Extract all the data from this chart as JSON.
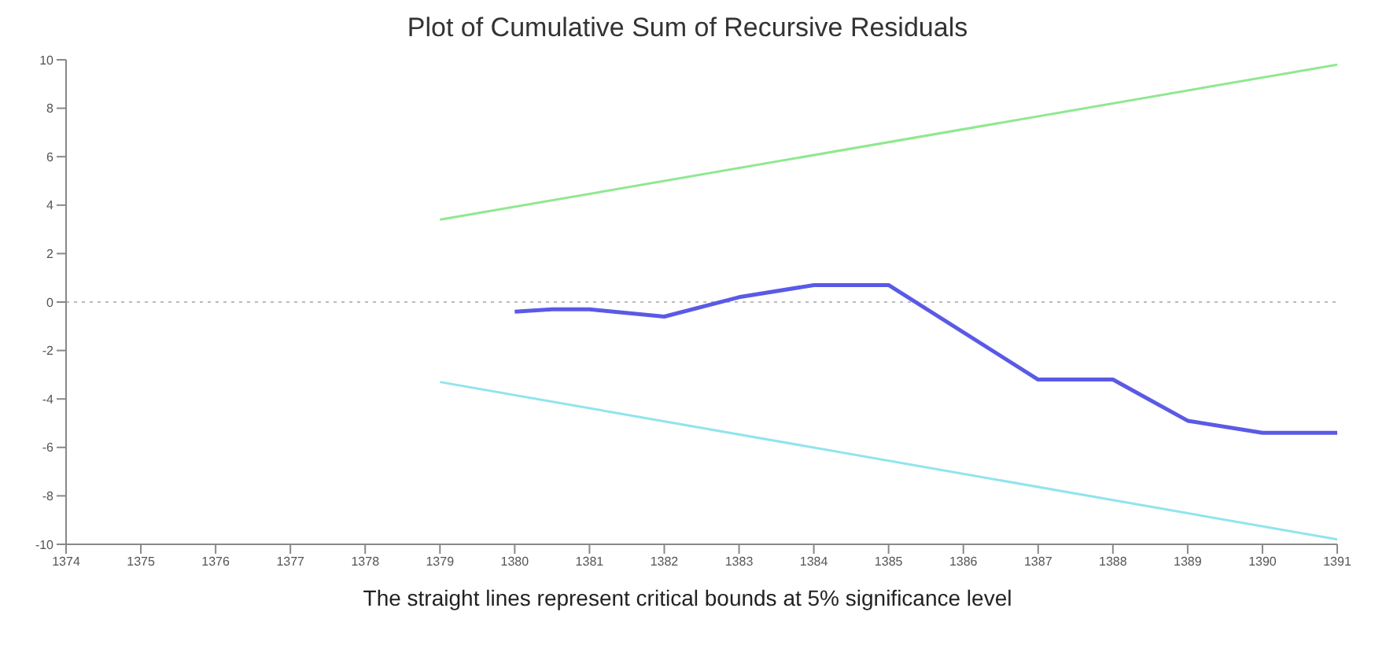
{
  "chart_data": {
    "type": "line",
    "title": "Plot of Cumulative Sum of Recursive Residuals",
    "annotations": [
      "The straight lines represent critical bounds at 5% significance level"
    ],
    "series": [
      {
        "color": "#5a5ae6",
        "x": [
          1380,
          1380.5,
          1381,
          1382,
          1383,
          1384,
          1385,
          1387,
          1388,
          1389,
          1390,
          1391
        ],
        "values": [
          -0.4,
          -0.3,
          -0.3,
          -0.6,
          0.2,
          0.7,
          0.7,
          -3.2,
          -3.2,
          -4.9,
          -5.4,
          -5.4
        ]
      },
      {
        "color": "#90e890",
        "x": [
          1379,
          1391
        ],
        "values": [
          3.4,
          9.8
        ]
      },
      {
        "color": "#90e4ee",
        "x": [
          1379,
          1391
        ],
        "values": [
          -3.3,
          -9.8
        ]
      }
    ],
    "xlim": [
      1374,
      1391
    ],
    "xticks": [
      1374,
      1375,
      1376,
      1377,
      1378,
      1379,
      1380,
      1381,
      1382,
      1383,
      1384,
      1385,
      1386,
      1387,
      1388,
      1389,
      1390,
      1391
    ],
    "ylim": [
      -10,
      10
    ],
    "yticks": [
      -10,
      -8,
      -6,
      -4,
      -2,
      0,
      2,
      4,
      6,
      8,
      10
    ],
    "ref_lines": [
      {
        "axis": "y",
        "value": 0,
        "color": "#bbbbbb",
        "line_style": "dotted"
      }
    ],
    "grid": false,
    "legend": false,
    "marker": "none",
    "line_style": "solid"
  }
}
